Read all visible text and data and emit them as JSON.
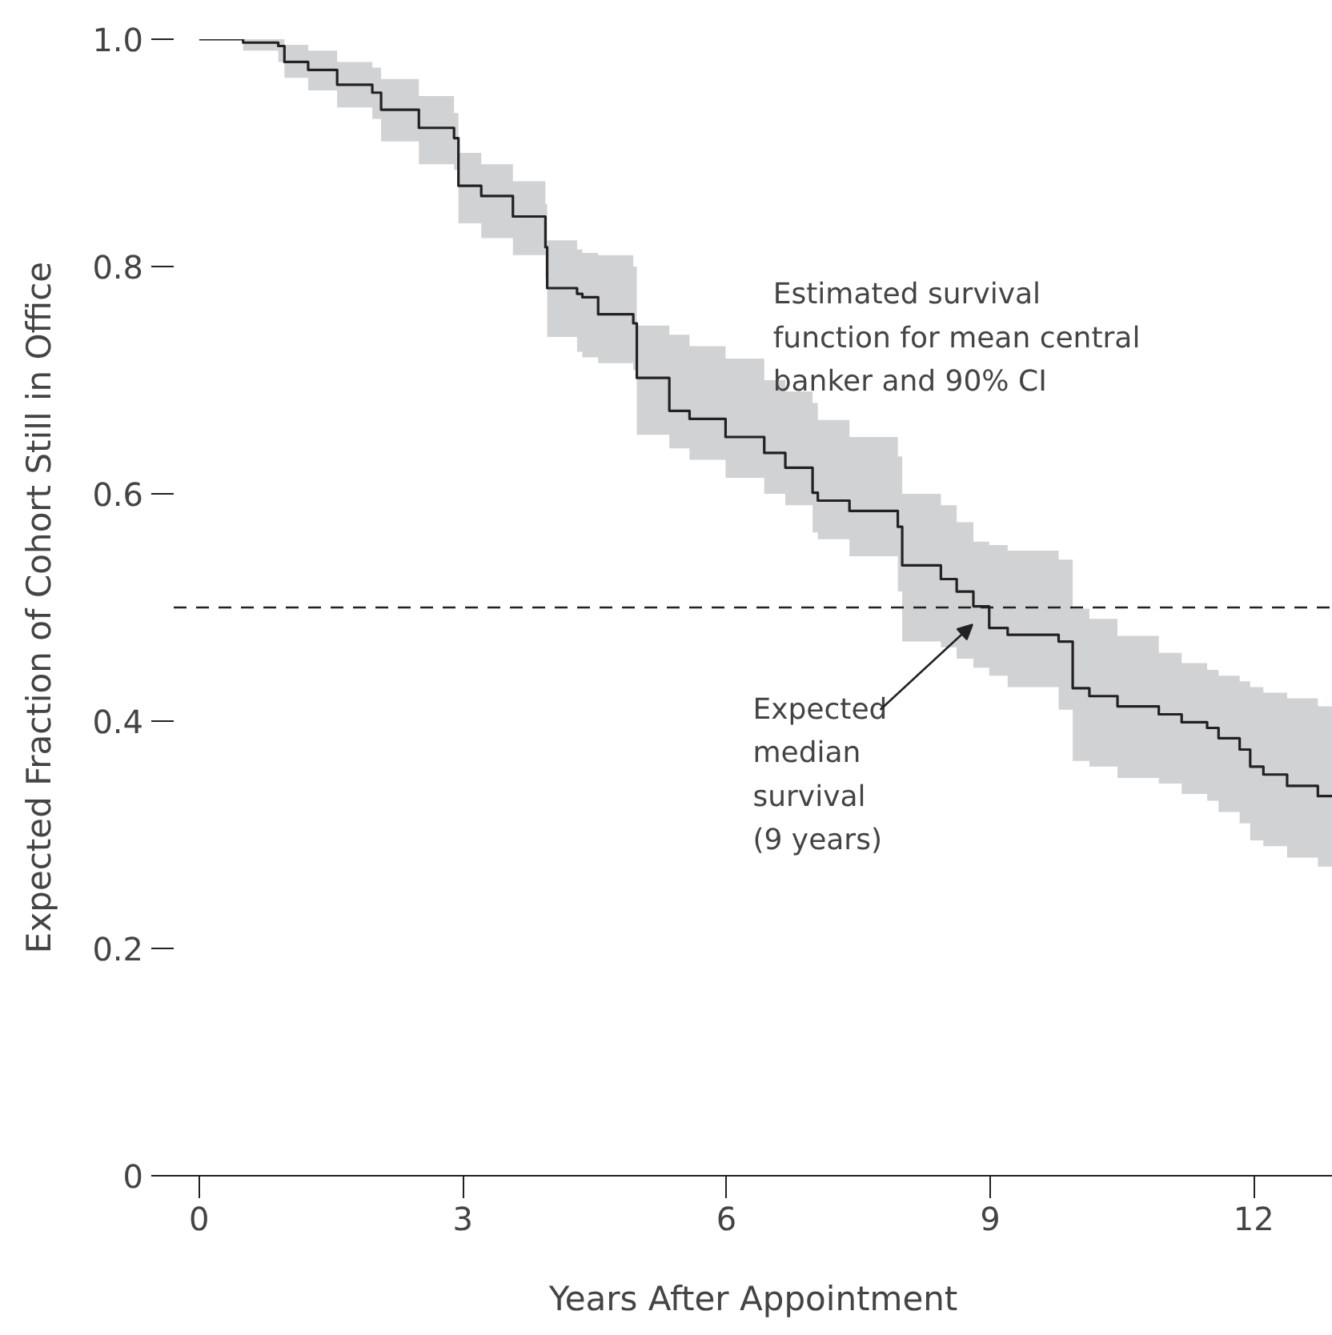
{
  "chart_data": {
    "type": "step",
    "xlabel": "Years After Appointment",
    "ylabel": "Expected Fraction of Cohort Still in Office",
    "xlim": [
      -0.29,
      12.9
    ],
    "ylim": [
      0,
      1.0
    ],
    "xticks": [
      0,
      3,
      6,
      9,
      12
    ],
    "yticks": [
      0,
      0.2,
      0.4,
      0.6,
      0.8,
      {
        "value": 1.0,
        "label": "1.0"
      }
    ],
    "grid": false,
    "marker": "none",
    "line_style": "solid",
    "series": [
      {
        "color": "#222222",
        "x": [
          0,
          0.5,
          0.9,
          0.97,
          1.24,
          1.57,
          1.97,
          2.07,
          2.5,
          2.9,
          2.95,
          3.21,
          3.57,
          3.94,
          3.96,
          4.3,
          4.36,
          4.54,
          4.94,
          4.98,
          5.35,
          5.58,
          5.99,
          6.43,
          6.67,
          6.98,
          7.04,
          7.4,
          7.95,
          8.0,
          8.44,
          8.62,
          8.81,
          8.99,
          9.2,
          9.78,
          9.94,
          10.13,
          10.45,
          10.92,
          11.18,
          11.47,
          11.6,
          11.84,
          11.96,
          12.11,
          12.38,
          12.73,
          12.9
        ],
        "values": [
          1.0,
          0.997,
          0.994,
          0.98,
          0.973,
          0.96,
          0.953,
          0.938,
          0.922,
          0.913,
          0.871,
          0.862,
          0.844,
          0.817,
          0.781,
          0.776,
          0.773,
          0.758,
          0.75,
          0.702,
          0.673,
          0.666,
          0.65,
          0.636,
          0.623,
          0.601,
          0.594,
          0.585,
          0.571,
          0.537,
          0.525,
          0.514,
          0.501,
          0.482,
          0.476,
          0.47,
          0.429,
          0.422,
          0.413,
          0.406,
          0.399,
          0.394,
          0.385,
          0.375,
          0.36,
          0.353,
          0.343,
          0.334,
          0.334
        ],
        "lower": [
          1.0,
          0.99,
          0.98,
          0.966,
          0.955,
          0.94,
          0.93,
          0.91,
          0.89,
          0.885,
          0.838,
          0.825,
          0.81,
          0.79,
          0.738,
          0.725,
          0.72,
          0.715,
          0.709,
          0.652,
          0.64,
          0.63,
          0.614,
          0.6,
          0.59,
          0.566,
          0.56,
          0.545,
          0.514,
          0.47,
          0.465,
          0.455,
          0.447,
          0.44,
          0.43,
          0.41,
          0.365,
          0.36,
          0.35,
          0.345,
          0.336,
          0.33,
          0.32,
          0.31,
          0.295,
          0.29,
          0.28,
          0.272,
          0.272
        ],
        "upper": [
          1.0,
          1.0,
          1.0,
          0.995,
          0.99,
          0.98,
          0.975,
          0.965,
          0.95,
          0.935,
          0.9,
          0.89,
          0.875,
          0.855,
          0.823,
          0.815,
          0.812,
          0.81,
          0.8,
          0.748,
          0.74,
          0.73,
          0.719,
          0.7,
          0.69,
          0.68,
          0.665,
          0.65,
          0.633,
          0.6,
          0.59,
          0.575,
          0.558,
          0.555,
          0.55,
          0.542,
          0.499,
          0.49,
          0.475,
          0.46,
          0.451,
          0.445,
          0.44,
          0.435,
          0.43,
          0.425,
          0.42,
          0.413,
          0.413
        ]
      }
    ],
    "ref_lines": [
      {
        "axis": "y",
        "value": 0.5,
        "label": null,
        "color": "#222222",
        "line_style": "dashed"
      }
    ],
    "annotations": [
      "Estimated survival\nfunction for mean central\nbanker and 90% CI",
      "Expected\nmedian\nsurvival\n(9 years)"
    ]
  }
}
